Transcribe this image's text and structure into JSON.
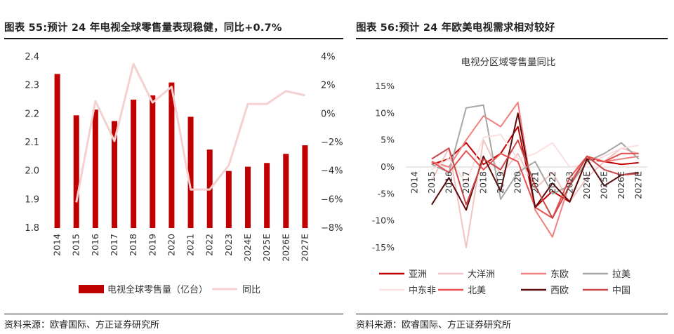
{
  "left": {
    "title": "图表 55:预计 24 年电视全球零售量表现稳健，同比+0.7%",
    "source": "资料来源：欧睿国际、方正证券研究所"
  },
  "right": {
    "title": "图表 56:预计 24 年欧美电视需求相对较好",
    "source": "资料来源：欧睿国际、方正证券研究所"
  },
  "chart_data": [
    {
      "type": "bar",
      "title": "",
      "categories": [
        "2014",
        "2015",
        "2016",
        "2017",
        "2018",
        "2019",
        "2020",
        "2021",
        "2022",
        "2023",
        "2024E",
        "2025E",
        "2026E",
        "2027E"
      ],
      "series": [
        {
          "name": "电视全球零售量（亿台）",
          "axis": "left",
          "type": "bar",
          "color": "#c00000",
          "values": [
            2.34,
            2.195,
            2.215,
            2.175,
            2.25,
            2.265,
            2.31,
            2.19,
            2.075,
            2.0,
            2.015,
            2.028,
            2.06,
            2.09
          ]
        },
        {
          "name": "同比",
          "axis": "right",
          "type": "line",
          "color": "#f5d0d0",
          "values": [
            null,
            -6.2,
            0.9,
            -1.9,
            3.5,
            0.8,
            1.9,
            -5.3,
            -5.3,
            -3.6,
            0.7,
            0.7,
            1.6,
            1.3
          ]
        }
      ],
      "ylim": [
        1.8,
        2.4
      ],
      "yticks": [
        "2.4",
        "2.3",
        "2.2",
        "2.1",
        "2.0",
        "1.9",
        "1.8"
      ],
      "y2lim": [
        -8,
        4
      ],
      "y2ticks": [
        "4%",
        "2%",
        "0%",
        "−2%",
        "−4%",
        "−6%",
        "−8%"
      ],
      "legend": "bottom"
    },
    {
      "type": "line",
      "title": "电视分区域零售量同比",
      "x": [
        "2014",
        "2015",
        "2016",
        "2017",
        "2018",
        "2019",
        "2020",
        "2021",
        "2022",
        "2023",
        "2024E",
        "2025E",
        "2026E",
        "2027E"
      ],
      "yticks": [
        "15%",
        "10%",
        "5%",
        "0%",
        "-5%",
        "-10%",
        "-15%"
      ],
      "ylim": [
        -15,
        15
      ],
      "series": [
        {
          "name": "亚洲",
          "color": "#c00000",
          "values": [
            null,
            0.5,
            1.5,
            4.5,
            0.5,
            2.5,
            7.5,
            -7.5,
            -4.5,
            -6.5,
            1.5,
            1.0,
            0.5,
            0.8
          ]
        },
        {
          "name": "大洋洲",
          "color": "#f2c4c4",
          "values": [
            null,
            -2.5,
            3.5,
            -15.0,
            5.0,
            -1.5,
            2.5,
            -4.0,
            -1.0,
            -6.5,
            -2.0,
            1.0,
            3.5,
            2.5
          ]
        },
        {
          "name": "东欧",
          "color": "#f08080",
          "values": [
            null,
            1.0,
            0.0,
            5.0,
            9.5,
            7.5,
            12.0,
            -8.0,
            -13.0,
            -3.0,
            2.0,
            1.0,
            1.5,
            2.0
          ]
        },
        {
          "name": "拉美",
          "color": "#a6a6a6",
          "values": [
            null,
            0.5,
            -1.0,
            11.0,
            11.5,
            -6.0,
            -1.0,
            1.0,
            -5.0,
            -3.5,
            1.0,
            2.5,
            4.5,
            1.5
          ]
        },
        {
          "name": "中东非",
          "color": "#fbe0e0",
          "values": [
            null,
            -0.5,
            1.5,
            -3.0,
            5.5,
            6.0,
            1.5,
            2.5,
            4.5,
            0.0,
            0.5,
            2.0,
            3.5,
            4.0
          ]
        },
        {
          "name": "北美",
          "color": "#e85050",
          "values": [
            null,
            1.0,
            -1.0,
            3.0,
            -0.5,
            2.5,
            1.0,
            -7.5,
            -9.5,
            -2.0,
            2.0,
            1.0,
            2.5,
            2.5
          ]
        },
        {
          "name": "西欧",
          "color": "#5c0a0a",
          "values": [
            null,
            -7.0,
            -2.0,
            -8.0,
            2.0,
            -4.5,
            10.0,
            -7.5,
            -3.0,
            -6.5,
            1.5,
            -3.5,
            -1.5,
            -1.0
          ]
        },
        {
          "name": "中国",
          "color": "#c84848",
          "values": [
            null,
            1.5,
            3.5,
            -7.0,
            1.5,
            -0.5,
            5.0,
            -3.5,
            -9.5,
            -3.5,
            2.0,
            -0.5,
            -1.5,
            -1.2
          ]
        }
      ],
      "legend": "bottom"
    }
  ]
}
